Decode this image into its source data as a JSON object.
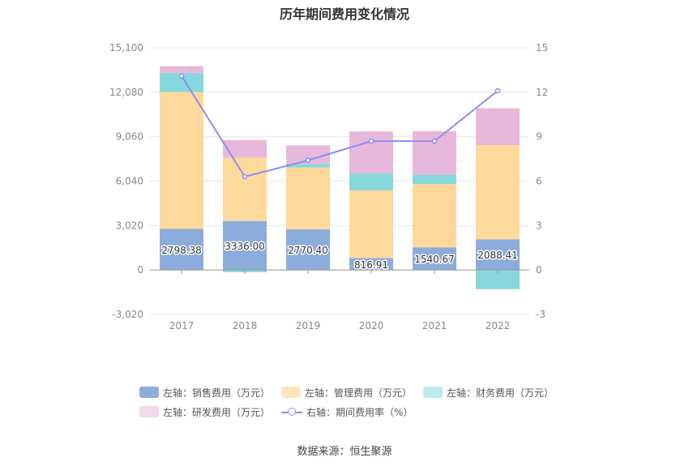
{
  "chart_data": {
    "type": "bar",
    "title": "历年期间费用变化情况",
    "categories": [
      "2017",
      "2018",
      "2019",
      "2020",
      "2021",
      "2022"
    ],
    "left_axis": {
      "ticks": [
        "15,100",
        "12,080",
        "9,060",
        "6,040",
        "3,020",
        "0",
        "-3,020"
      ],
      "ylim": [
        -3020,
        15100
      ]
    },
    "right_axis": {
      "ticks": [
        "15",
        "12",
        "9",
        "6",
        "3",
        "0",
        "-3"
      ],
      "ylim": [
        -3,
        15
      ]
    },
    "series": [
      {
        "name": "左轴：销售费用（万元）",
        "type": "bar",
        "color": "#8cacdc",
        "values": [
          2798.38,
          3336.0,
          2770.4,
          816.91,
          1540.67,
          2088.41
        ],
        "labels": [
          "2798.38",
          "3336.00",
          "2770.40",
          "816.91",
          "1540.67",
          "2088.41"
        ]
      },
      {
        "name": "左轴：管理费用（万元）",
        "type": "bar",
        "color": "#ffd89b",
        "values": [
          9300,
          4300,
          4200,
          4600,
          4300,
          6400
        ]
      },
      {
        "name": "左轴：财务费用（万元）",
        "type": "bar",
        "color": "#86d8dc",
        "values": [
          1300,
          -150,
          250,
          1150,
          650,
          -1300
        ]
      },
      {
        "name": "左轴：研发费用（万元）",
        "type": "bar",
        "color": "#e8b8da",
        "values": [
          450,
          1200,
          1250,
          2850,
          2950,
          2500
        ]
      },
      {
        "name": "右轴：期间费用率（%）",
        "type": "line",
        "color": "#8a8ef2",
        "values": [
          13.1,
          6.3,
          7.4,
          8.7,
          8.7,
          12.1
        ]
      }
    ],
    "grid": true,
    "legend_position": "bottom"
  },
  "source": "数据来源：恒生聚源"
}
